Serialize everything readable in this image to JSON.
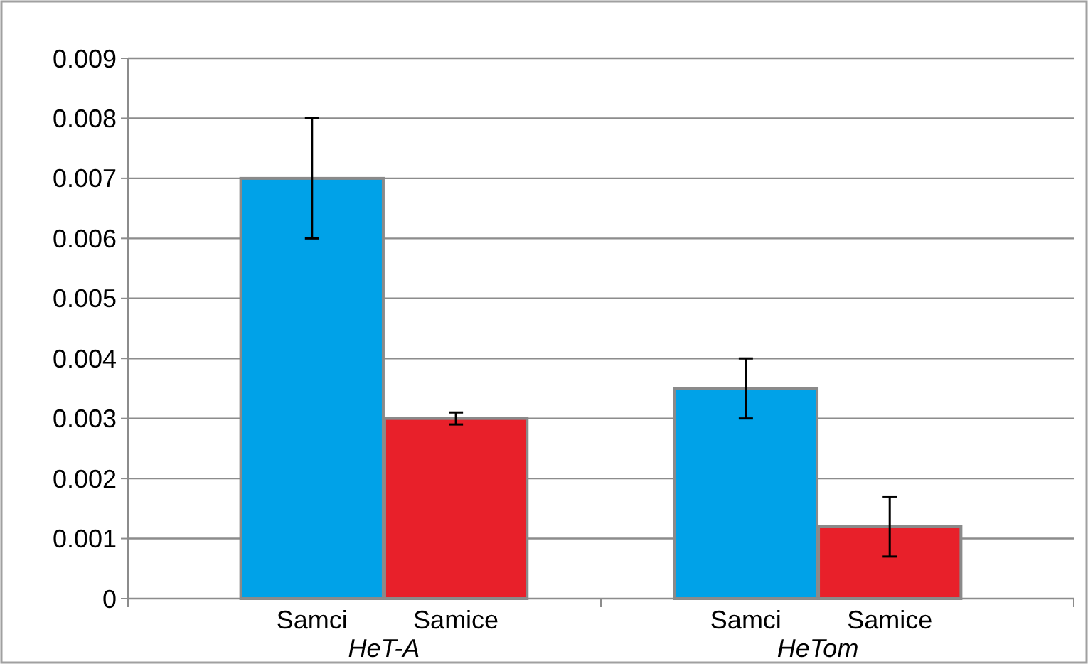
{
  "chart_data": {
    "type": "bar",
    "categories": [
      "HeT-A",
      "HeTom"
    ],
    "series": [
      {
        "name": "Samci",
        "color": "#00a2e8",
        "values": [
          0.007,
          0.0035
        ],
        "errors": [
          [
            0.006,
            0.008
          ],
          [
            0.003,
            0.004
          ]
        ]
      },
      {
        "name": "Samice",
        "color": "#e8202a",
        "values": [
          0.003,
          0.0012
        ],
        "errors": [
          [
            0.0029,
            0.0031
          ],
          [
            0.0007,
            0.0017
          ]
        ]
      }
    ],
    "ylim": [
      0,
      0.009
    ],
    "yticks": [
      0,
      0.001,
      0.002,
      0.003,
      0.004,
      0.005,
      0.006,
      0.007,
      0.008,
      0.009
    ],
    "grid": "y"
  }
}
